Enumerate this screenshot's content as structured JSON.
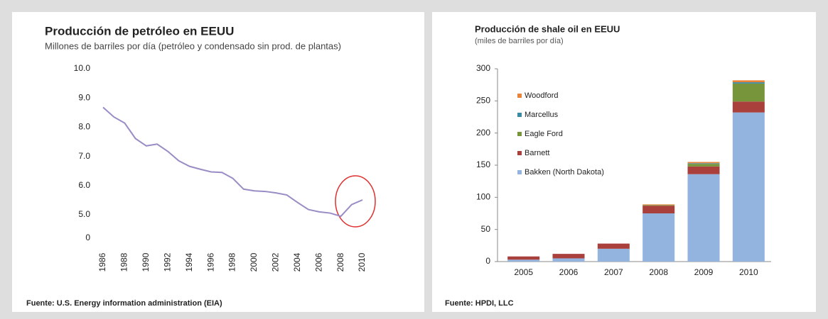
{
  "chart_data": [
    {
      "type": "line",
      "title": "Producción de petróleo en EEUU",
      "subtitle": "Millones de barriles por día (petróleo y condensado sin prod. de plantas)",
      "source": "Fuente: U.S. Energy information administration (EIA)",
      "categories": [
        "1986",
        null,
        "1988",
        null,
        "1990",
        null,
        "1992",
        null,
        "1994",
        null,
        "1996",
        null,
        "1998",
        null,
        "2000",
        null,
        "2002",
        null,
        "2004",
        null,
        "2006",
        null,
        "2008",
        null,
        "2010"
      ],
      "values": [
        8.68,
        8.35,
        8.14,
        7.61,
        7.36,
        7.42,
        7.17,
        6.85,
        6.66,
        6.56,
        6.47,
        6.45,
        6.25,
        5.88,
        5.82,
        5.8,
        5.75,
        5.68,
        5.42,
        5.18,
        5.1,
        5.06,
        4.95,
        5.35,
        5.51
      ],
      "color": "#9a8cc4",
      "ylim": [
        4.2,
        10
      ],
      "yticks": [
        {
          "value": 10,
          "label": "10.0"
        },
        {
          "value": 9,
          "label": "9.0"
        },
        {
          "value": 8,
          "label": "8.0"
        },
        {
          "value": 7,
          "label": "7.0"
        },
        {
          "value": 6,
          "label": "6.0"
        },
        {
          "value": 5,
          "label": "5.0"
        },
        0
      ]
    },
    {
      "type": "stacked_bar",
      "title": "Producción de shale oil en EEUU",
      "subtitle": "(miles de barriles por día)",
      "source": "Fuente: HPDI, LLC",
      "categories": [
        "2005",
        "2006",
        "2007",
        "2008",
        "2009",
        "2010"
      ],
      "series": [
        {
          "name": "Bakken (North Dakota)",
          "color": "#93b4de",
          "values": [
            3,
            5,
            20,
            75,
            136,
            232
          ]
        },
        {
          "name": "Barnett",
          "color": "#a9403c",
          "values": [
            5,
            7,
            8,
            12,
            12,
            17
          ]
        },
        {
          "name": "Eagle Ford",
          "color": "#77963c",
          "values": [
            0,
            0,
            0,
            1,
            4,
            28
          ]
        },
        {
          "name": "Marcellus",
          "color": "#3a8aa6",
          "values": [
            0,
            0,
            0,
            0,
            1,
            2
          ]
        },
        {
          "name": "Woodford",
          "color": "#e8843a",
          "values": [
            0,
            0,
            0,
            1,
            2,
            3
          ]
        }
      ],
      "ylim": [
        0,
        300
      ],
      "yticks": [
        0,
        50,
        100,
        150,
        200,
        250,
        300
      ]
    }
  ]
}
